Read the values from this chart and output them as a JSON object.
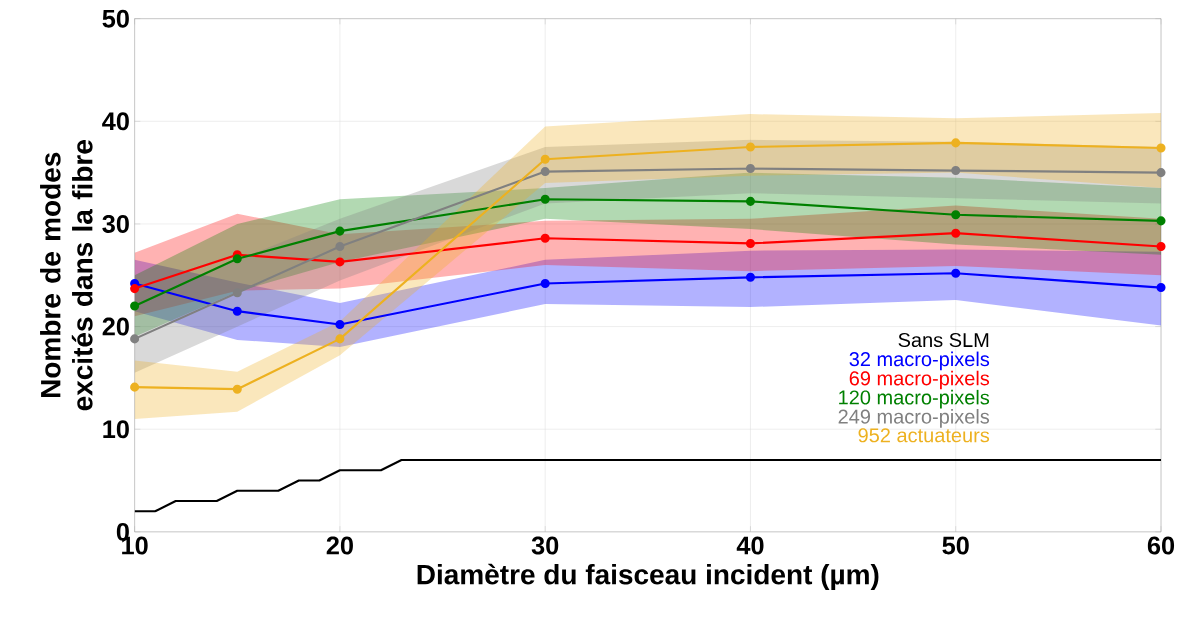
{
  "chart_data": {
    "type": "line",
    "xlabel": "Diamètre du faisceau incident (µm)",
    "ylabel": "Nombre de modes excités dans la fibre",
    "x": [
      10,
      15,
      20,
      30,
      40,
      50,
      60
    ],
    "xlim": [
      10,
      60
    ],
    "ylim": [
      0,
      50
    ],
    "xticks": [
      10,
      20,
      30,
      40,
      50,
      60
    ],
    "yticks": [
      0,
      10,
      20,
      30,
      40,
      50
    ],
    "grid": true,
    "legend": "right",
    "marker": "circle",
    "line_style": "solid",
    "series": [
      {
        "name": "Sans SLM",
        "color": "#000000",
        "marker": "none",
        "x": [
          10,
          11,
          12,
          14,
          15,
          17,
          18,
          19,
          20,
          22,
          23,
          60
        ],
        "values": [
          2,
          2,
          3,
          3,
          4,
          4,
          5,
          5,
          6,
          6,
          7,
          7
        ]
      },
      {
        "name": "32 macro-pixels",
        "color": "#0000ff",
        "values": [
          24.2,
          21.5,
          20.2,
          24.2,
          24.8,
          25.2,
          23.8
        ],
        "lower": [
          21.5,
          18.7,
          18.0,
          22.2,
          21.9,
          22.6,
          20.1
        ],
        "upper": [
          26.5,
          24.3,
          22.3,
          26.5,
          27.4,
          27.5,
          27.3
        ]
      },
      {
        "name": "69 macro-pixels",
        "color": "#ff0000",
        "values": [
          23.7,
          27.0,
          26.3,
          28.6,
          28.1,
          29.1,
          27.8
        ],
        "lower": [
          21.0,
          23.5,
          23.7,
          26.0,
          25.4,
          25.9,
          25.0
        ],
        "upper": [
          27.2,
          31.0,
          29.0,
          30.3,
          30.5,
          31.8,
          30.5
        ]
      },
      {
        "name": "120 macro-pixels",
        "color": "#008000",
        "values": [
          22.0,
          26.6,
          29.3,
          32.4,
          32.2,
          30.9,
          30.3
        ],
        "lower": [
          19.0,
          23.4,
          26.3,
          30.5,
          29.5,
          28.0,
          27.0
        ],
        "upper": [
          25.0,
          30.0,
          32.4,
          33.5,
          35.0,
          34.5,
          33.5
        ]
      },
      {
        "name": "249 macro-pixels",
        "color": "#808080",
        "values": [
          18.8,
          23.3,
          27.8,
          35.1,
          35.4,
          35.2,
          35.0
        ],
        "lower": [
          15.5,
          20.0,
          24.5,
          32.0,
          33.0,
          32.5,
          32.0
        ],
        "upper": [
          22.0,
          26.5,
          30.5,
          37.5,
          38.2,
          38.0,
          37.5
        ]
      },
      {
        "name": "952 actuateurs",
        "color": "#edb120",
        "values": [
          14.1,
          13.9,
          18.8,
          36.3,
          37.5,
          37.9,
          37.4
        ],
        "lower": [
          11.0,
          11.7,
          17.2,
          34.0,
          34.7,
          35.0,
          33.5
        ],
        "upper": [
          16.7,
          15.6,
          20.5,
          39.5,
          40.7,
          40.3,
          40.8
        ]
      }
    ]
  }
}
